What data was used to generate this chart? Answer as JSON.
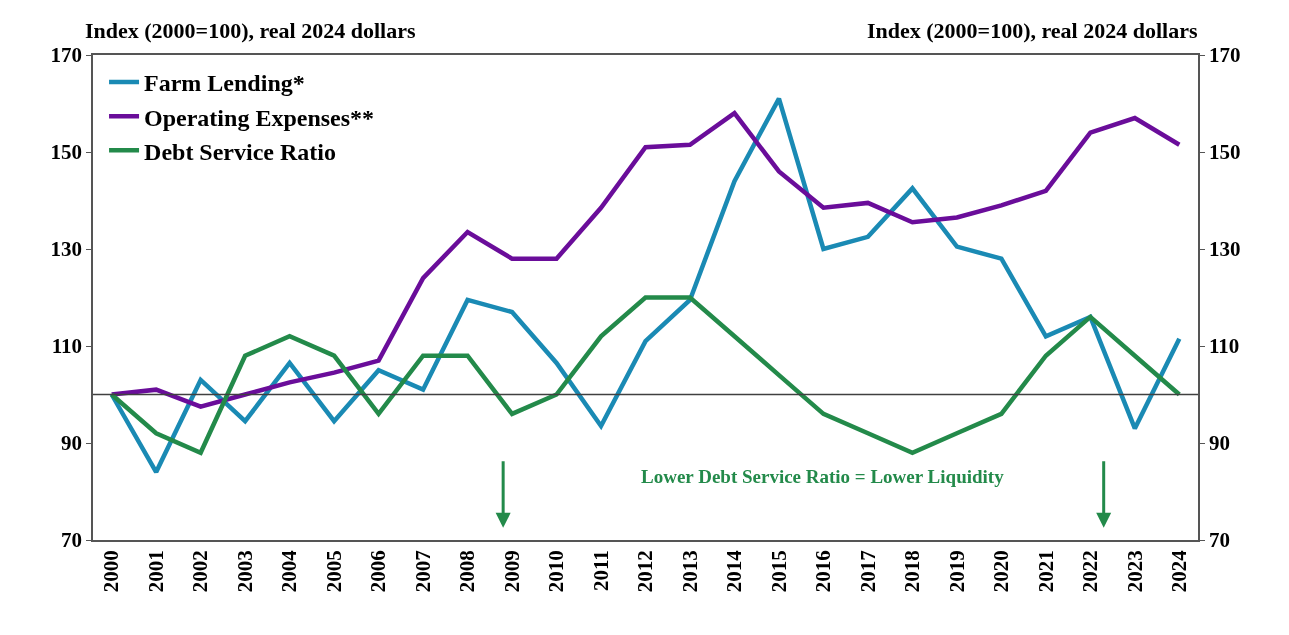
{
  "chart_data": {
    "type": "line",
    "ylabel": "Index (2000=100), real 2024 dollars",
    "y2label": "Index (2000=100), real 2024 dollars",
    "categories": [
      "2000",
      "2001",
      "2002",
      "2003",
      "2004",
      "2005",
      "2006",
      "2007",
      "2008",
      "2009",
      "2010",
      "2011",
      "2012",
      "2013",
      "2014",
      "2015",
      "2016",
      "2017",
      "2018",
      "2019",
      "2020",
      "2021",
      "2022",
      "2023",
      "2024"
    ],
    "series": [
      {
        "name": "Farm Lending*",
        "color": "#1a8ab4",
        "values": [
          100,
          84,
          103,
          94.5,
          106.5,
          94.5,
          105,
          101,
          119.5,
          117,
          106.5,
          93.5,
          111,
          119.5,
          144,
          161,
          130,
          132.5,
          142.5,
          130.5,
          128,
          112,
          116,
          93,
          111.5
        ]
      },
      {
        "name": "Operating Expenses**",
        "color": "#6a0d9a",
        "values": [
          100,
          101,
          97.5,
          100,
          102.5,
          104.5,
          107,
          124,
          133.5,
          128,
          128,
          138.5,
          151,
          151.5,
          158,
          146,
          138.5,
          139.5,
          135.5,
          136.5,
          139,
          142,
          154,
          157,
          151.5
        ]
      },
      {
        "name": "Debt Service Ratio",
        "color": "#238a4a",
        "values": [
          100,
          92,
          88,
          108,
          112,
          108,
          96,
          108,
          108,
          96,
          100,
          112,
          120,
          120,
          112,
          104,
          96,
          92,
          88,
          92,
          96,
          108,
          116,
          108,
          100
        ]
      }
    ],
    "ylim": [
      70,
      170
    ],
    "yticks": [
      70,
      90,
      110,
      130,
      150,
      170
    ],
    "y2lim": [
      70,
      170
    ],
    "y2ticks": [
      70,
      90,
      110,
      130,
      150,
      170
    ],
    "ref_lines": [
      {
        "axis": "y",
        "value": 100,
        "color": "#404040"
      }
    ],
    "annotations": [
      "Lower Debt Service Ratio = Lower Liquidity"
    ],
    "grid": false,
    "legend": "top left",
    "marker": "none",
    "line_style": "solid"
  }
}
